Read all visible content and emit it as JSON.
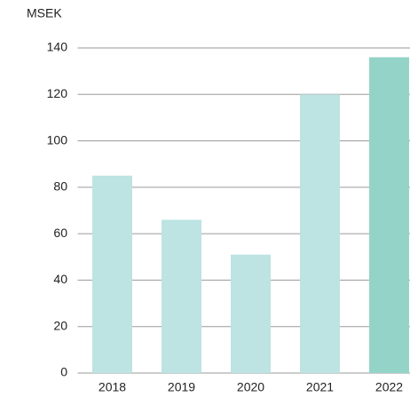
{
  "chart_data": {
    "type": "bar",
    "ylabel": "MSEK",
    "categories": [
      "2018",
      "2019",
      "2020",
      "2021",
      "2022"
    ],
    "values": [
      85,
      66,
      51,
      120,
      136
    ],
    "colors": [
      "#bde3e3",
      "#bde3e3",
      "#bde3e3",
      "#bde3e3",
      "#94d3c8"
    ],
    "ylim": [
      0,
      140
    ],
    "yticks": [
      0,
      20,
      40,
      60,
      80,
      100,
      120,
      140
    ],
    "grid": true
  }
}
